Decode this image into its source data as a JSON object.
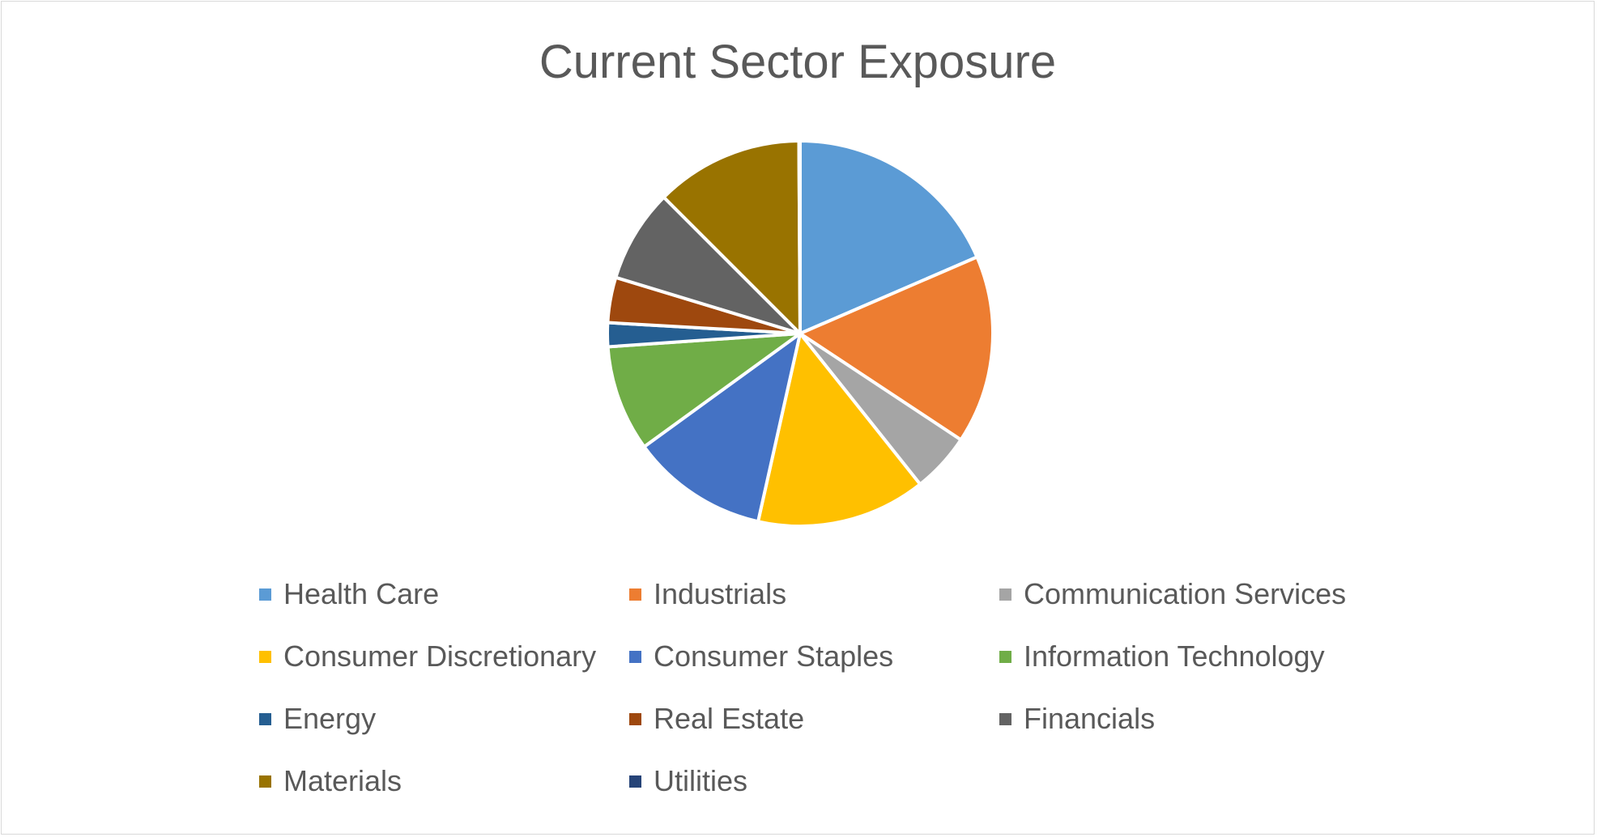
{
  "chart_data": {
    "type": "pie",
    "title": "Current Sector Exposure",
    "legend_position": "bottom",
    "series": [
      {
        "labels": [
          "Health Care",
          "Industrials",
          "Communication Services",
          "Consumer Discretionary",
          "Consumer Staples",
          "Information Technology",
          "Energy",
          "Real Estate",
          "Financials",
          "Materials",
          "Utilities"
        ],
        "values": [
          18.5,
          15.8,
          5.0,
          14.2,
          11.5,
          8.9,
          2.0,
          3.8,
          7.8,
          12.4,
          0.1
        ],
        "colors": [
          "#5b9bd5",
          "#ed7d31",
          "#a5a5a5",
          "#ffc000",
          "#4472c4",
          "#70ad47",
          "#255e91",
          "#9e480e",
          "#636363",
          "#997300",
          "#264478"
        ]
      }
    ]
  }
}
